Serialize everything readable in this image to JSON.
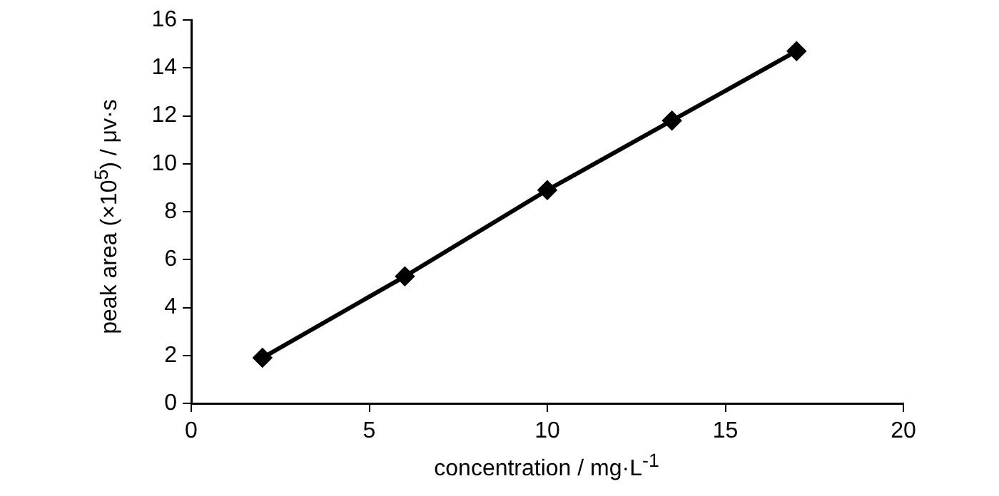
{
  "chart_data": {
    "type": "line",
    "xlabel": "concentration / mg·L$^{-1}$",
    "ylabel": "peak area (×10$^{5}$) / μv·s",
    "x": [
      2,
      6,
      10,
      13.5,
      17
    ],
    "series": [
      {
        "color": "#000000",
        "values": [
          1.9,
          5.3,
          8.9,
          11.8,
          14.7
        ]
      }
    ],
    "xlim": [
      0,
      20
    ],
    "xticks": [
      0,
      5,
      10,
      15,
      20
    ],
    "ylim": [
      0,
      16
    ],
    "yticks": [
      0,
      2,
      4,
      6,
      8,
      10,
      12,
      14,
      16
    ],
    "grid": false,
    "legend": false,
    "marker": "diamond",
    "line_style": "solid"
  }
}
